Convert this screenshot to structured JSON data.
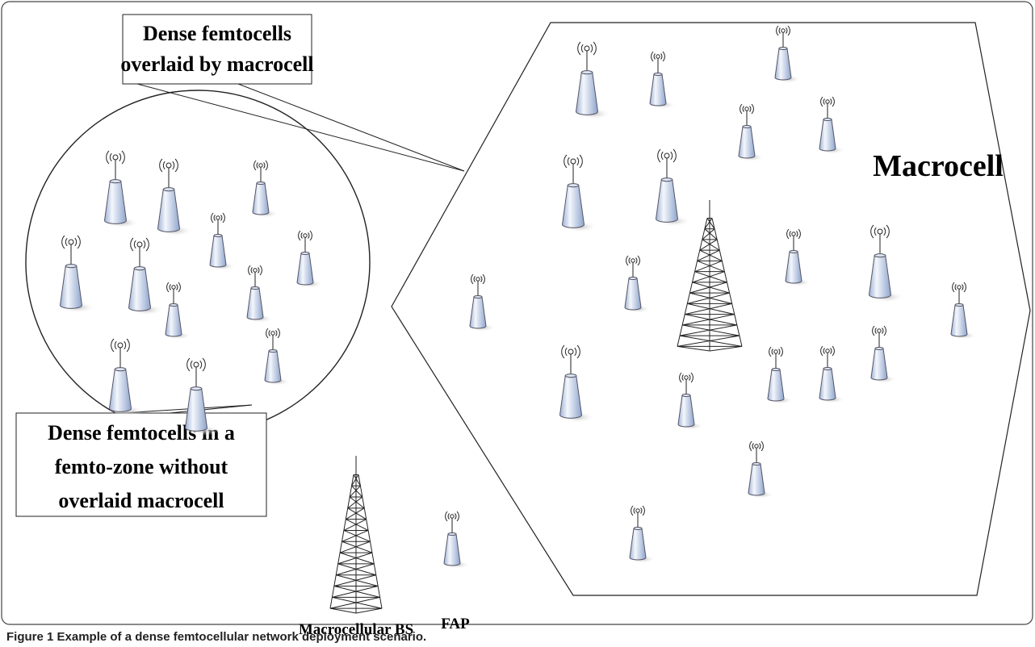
{
  "callouts": [
    {
      "lines": [
        "Dense femtocells",
        "overlaid by macrocell"
      ]
    },
    {
      "lines": [
        "Dense femtocells  in a",
        "femto-zone without",
        "overlaid macrocell"
      ]
    }
  ],
  "macrocell_label": "Macrocell",
  "legend": {
    "macro_bs": "Macrocellular BS",
    "fap": "FAP"
  },
  "caption": {
    "label": "Figure 1",
    "text": "Example of a dense femtocellular network deployment scenario."
  }
}
